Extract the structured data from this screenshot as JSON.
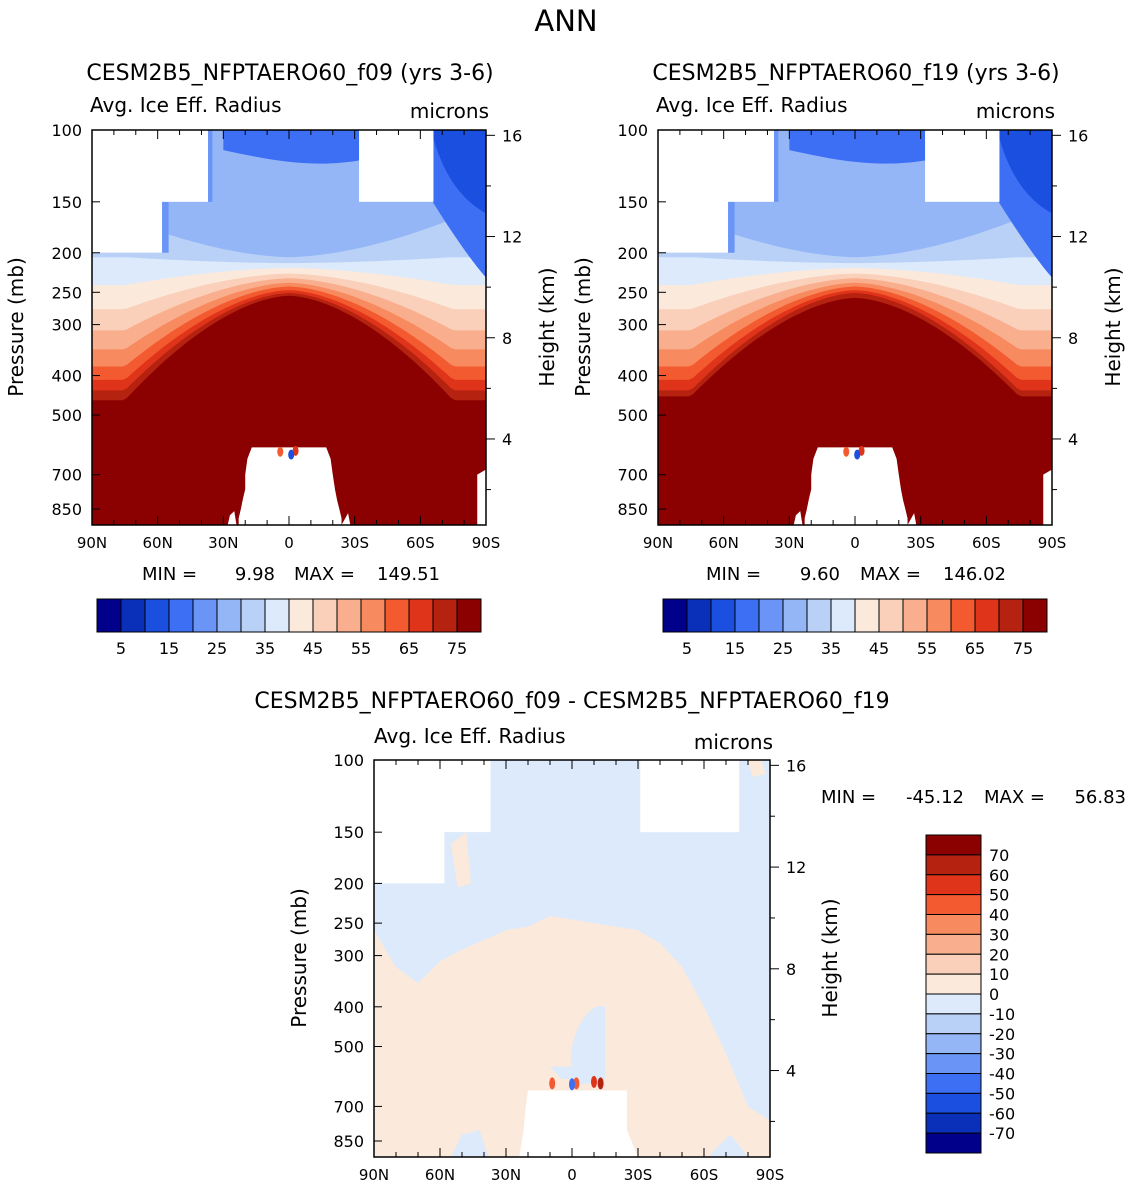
{
  "page_title": "ANN",
  "colors": {
    "abs": [
      "#00008B",
      "#0A2FB8",
      "#1A4FE0",
      "#3D6FF5",
      "#6A95F7",
      "#94B6F7",
      "#B9D1F7",
      "#DCEAFB",
      "#FBE9DC",
      "#FAD0BA",
      "#F9AF8E",
      "#F88A60",
      "#F45A30",
      "#E0341A",
      "#B52210",
      "#8B0000"
    ],
    "diff": [
      "#00008B",
      "#0A2FB8",
      "#1A4FE0",
      "#3D6FF5",
      "#6A95F7",
      "#94B6F7",
      "#B9D1F7",
      "#DCEAFB",
      "#FBE9DC",
      "#FAD0BA",
      "#F9AF8E",
      "#F88A60",
      "#F45A30",
      "#E0341A",
      "#B52210",
      "#8B0000"
    ],
    "missing": "#ffffff"
  },
  "chart_data": [
    {
      "type": "contour",
      "id": "f09",
      "title": "CESM2B5_NFPTAERO60_f09 (yrs 3-6)",
      "subtitle_left": "Avg. Ice Eff. Radius",
      "subtitle_right": "microns",
      "ylabel": "Pressure (mb)",
      "ylabel_right": "Height (km)",
      "x_ticks": [
        "90N",
        "60N",
        "30N",
        "0",
        "30S",
        "60S",
        "90S"
      ],
      "y_ticks": [
        "100",
        "150",
        "200",
        "250",
        "300",
        "400",
        "500",
        "700",
        "850"
      ],
      "y_ticks_right": [
        "16",
        "12",
        "8",
        "4"
      ],
      "stats": {
        "min_label": "MIN =",
        "min": "9.98",
        "max_label": "MAX =",
        "max": "149.51"
      },
      "colorbar": {
        "orientation": "horizontal",
        "levels": [
          "5",
          "15",
          "25",
          "35",
          "45",
          "55",
          "65",
          "75"
        ]
      },
      "field": {
        "trop_peak_mb": 255,
        "trop_edge_mb": 460,
        "trop_edge_width_deg": 75
      }
    },
    {
      "type": "contour",
      "id": "f19",
      "title": "CESM2B5_NFPTAERO60_f19 (yrs 3-6)",
      "subtitle_left": "Avg. Ice Eff. Radius",
      "subtitle_right": "microns",
      "ylabel": "Pressure (mb)",
      "ylabel_right": "Height (km)",
      "x_ticks": [
        "90N",
        "60N",
        "30N",
        "0",
        "30S",
        "60S",
        "90S"
      ],
      "y_ticks": [
        "100",
        "150",
        "200",
        "250",
        "300",
        "400",
        "500",
        "700",
        "850"
      ],
      "y_ticks_right": [
        "16",
        "12",
        "8",
        "4"
      ],
      "stats": {
        "min_label": "MIN =",
        "min": "9.60",
        "max_label": "MAX =",
        "max": "146.02"
      },
      "colorbar": {
        "orientation": "horizontal",
        "levels": [
          "5",
          "15",
          "25",
          "35",
          "45",
          "55",
          "65",
          "75"
        ]
      },
      "field": {
        "trop_peak_mb": 258,
        "trop_edge_mb": 450,
        "trop_edge_width_deg": 75
      }
    },
    {
      "type": "contour",
      "id": "diff",
      "title": "CESM2B5_NFPTAERO60_f09 - CESM2B5_NFPTAERO60_f19",
      "subtitle_left": "Avg. Ice Eff. Radius",
      "subtitle_right": "microns",
      "ylabel": "Pressure (mb)",
      "ylabel_right": "Height (km)",
      "x_ticks": [
        "90N",
        "60N",
        "30N",
        "0",
        "30S",
        "60S",
        "90S"
      ],
      "y_ticks": [
        "100",
        "150",
        "200",
        "250",
        "300",
        "400",
        "500",
        "700",
        "850"
      ],
      "y_ticks_right": [
        "16",
        "12",
        "8",
        "4"
      ],
      "stats": {
        "min_label": "MIN =",
        "min": "-45.12",
        "max_label": "MAX =",
        "max": "56.83"
      },
      "colorbar": {
        "orientation": "vertical",
        "levels": [
          "70",
          "60",
          "50",
          "40",
          "30",
          "20",
          "10",
          "0",
          "-10",
          "-20",
          "-30",
          "-40",
          "-50",
          "-60",
          "-70"
        ]
      }
    }
  ]
}
